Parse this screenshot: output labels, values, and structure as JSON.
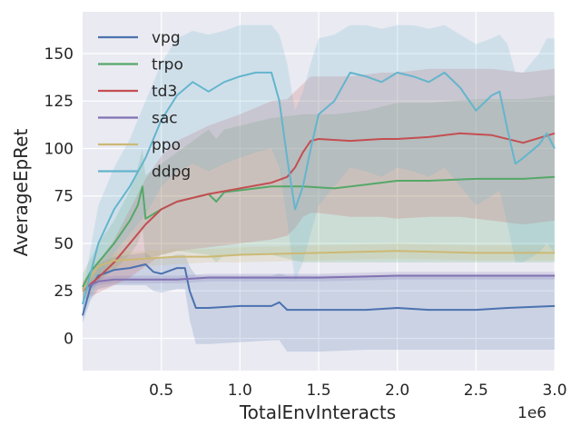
{
  "chart_data": {
    "type": "line",
    "xlabel": "TotalEnvInteracts",
    "ylabel": "AverageEpRet",
    "x_offset_label": "1e6",
    "xlim": [
      0,
      3.0
    ],
    "ylim": [
      -17,
      172
    ],
    "xticks": [
      0.5,
      1.0,
      1.5,
      2.0,
      2.5,
      3.0
    ],
    "xtick_labels": [
      "0.5",
      "1.0",
      "1.5",
      "2.0",
      "2.5",
      "3.0"
    ],
    "yticks": [
      0,
      25,
      50,
      75,
      100,
      125,
      150
    ],
    "ytick_labels": [
      "0",
      "25",
      "50",
      "75",
      "100",
      "125",
      "150"
    ],
    "grid": true,
    "legend_position": "top-left",
    "series": [
      {
        "name": "vpg",
        "color": "#4c72b0",
        "x": [
          0,
          0.05,
          0.1,
          0.2,
          0.3,
          0.4,
          0.45,
          0.5,
          0.6,
          0.65,
          0.68,
          0.72,
          0.8,
          1.0,
          1.2,
          1.25,
          1.3,
          1.5,
          1.8,
          2.0,
          2.2,
          2.5,
          2.7,
          3.0
        ],
        "y": [
          12,
          27,
          33,
          36,
          37,
          39,
          35,
          34,
          37,
          37,
          25,
          16,
          16,
          17,
          17,
          19,
          15,
          15,
          15,
          16,
          15,
          15,
          16,
          17
        ],
        "lower": [
          8,
          20,
          26,
          28,
          28,
          28,
          25,
          24,
          26,
          26,
          10,
          -3,
          -3,
          -2,
          -1,
          -1,
          -7,
          -7,
          -6,
          -6,
          -6,
          -6,
          -6,
          -6
        ],
        "upper": [
          16,
          33,
          39,
          43,
          44,
          45,
          42,
          42,
          44,
          44,
          38,
          33,
          33,
          33,
          33,
          34,
          33,
          33,
          33,
          33,
          33,
          33,
          33,
          33
        ]
      },
      {
        "name": "trpo",
        "color": "#55a868",
        "x": [
          0,
          0.05,
          0.1,
          0.2,
          0.3,
          0.35,
          0.38,
          0.4,
          0.5,
          0.6,
          0.8,
          0.85,
          0.9,
          1.0,
          1.2,
          1.4,
          1.6,
          1.8,
          2.0,
          2.2,
          2.5,
          2.8,
          3.0
        ],
        "y": [
          27,
          35,
          40,
          50,
          62,
          70,
          80,
          63,
          68,
          72,
          76,
          72,
          77,
          78,
          80,
          80,
          79,
          81,
          83,
          83,
          84,
          84,
          85
        ],
        "lower": [
          20,
          27,
          30,
          36,
          44,
          50,
          58,
          42,
          44,
          46,
          44,
          40,
          44,
          44,
          44,
          40,
          40,
          40,
          40,
          40,
          40,
          40,
          40
        ],
        "upper": [
          34,
          42,
          50,
          62,
          78,
          90,
          100,
          86,
          92,
          98,
          110,
          105,
          110,
          112,
          116,
          118,
          118,
          120,
          124,
          124,
          126,
          126,
          128
        ]
      },
      {
        "name": "td3",
        "color": "#c44e52",
        "x": [
          0,
          0.1,
          0.2,
          0.3,
          0.4,
          0.5,
          0.6,
          0.8,
          1.0,
          1.2,
          1.3,
          1.35,
          1.4,
          1.45,
          1.5,
          1.7,
          1.9,
          2.0,
          2.2,
          2.4,
          2.6,
          2.8,
          3.0
        ],
        "y": [
          25,
          32,
          40,
          50,
          60,
          68,
          72,
          76,
          79,
          82,
          85,
          90,
          98,
          104,
          105,
          104,
          105,
          105,
          106,
          108,
          107,
          103,
          108
        ],
        "lower": [
          20,
          24,
          28,
          32,
          38,
          44,
          46,
          48,
          50,
          52,
          54,
          58,
          64,
          66,
          66,
          64,
          64,
          63,
          64,
          64,
          62,
          60,
          62
        ],
        "upper": [
          30,
          40,
          52,
          68,
          84,
          96,
          104,
          112,
          118,
          125,
          126,
          130,
          134,
          138,
          138,
          138,
          140,
          140,
          142,
          142,
          142,
          140,
          142
        ]
      },
      {
        "name": "sac",
        "color": "#8172b2",
        "x": [
          0,
          0.05,
          0.1,
          0.2,
          0.4,
          0.6,
          0.8,
          1.0,
          1.5,
          2.0,
          2.5,
          3.0
        ],
        "y": [
          26,
          28,
          30,
          31,
          31,
          31,
          32,
          32,
          32,
          33,
          33,
          33
        ],
        "lower": [
          24,
          26,
          28,
          29,
          29,
          29,
          30,
          30,
          30,
          31,
          31,
          31
        ],
        "upper": [
          28,
          30,
          32,
          33,
          33,
          33,
          34,
          34,
          34,
          35,
          35,
          35
        ]
      },
      {
        "name": "ppo",
        "color": "#ccb974",
        "x": [
          0,
          0.05,
          0.1,
          0.2,
          0.4,
          0.6,
          0.8,
          1.0,
          1.5,
          2.0,
          2.5,
          3.0
        ],
        "y": [
          25,
          32,
          38,
          41,
          42,
          43,
          43,
          44,
          45,
          46,
          45,
          45
        ],
        "lower": [
          22,
          28,
          34,
          37,
          38,
          39,
          40,
          40,
          41,
          42,
          41,
          41
        ],
        "upper": [
          28,
          36,
          42,
          45,
          46,
          47,
          47,
          48,
          49,
          50,
          49,
          49
        ]
      },
      {
        "name": "ddpg",
        "color": "#64b5cd",
        "x": [
          0,
          0.1,
          0.2,
          0.3,
          0.4,
          0.5,
          0.6,
          0.7,
          0.8,
          0.9,
          1.0,
          1.1,
          1.2,
          1.25,
          1.3,
          1.35,
          1.4,
          1.45,
          1.5,
          1.6,
          1.7,
          1.8,
          1.9,
          2.0,
          2.1,
          2.2,
          2.3,
          2.4,
          2.5,
          2.6,
          2.65,
          2.7,
          2.75,
          2.8,
          2.9,
          2.95,
          3.0
        ],
        "y": [
          18,
          50,
          68,
          80,
          95,
          115,
          128,
          135,
          130,
          135,
          138,
          140,
          140,
          125,
          95,
          68,
          80,
          100,
          118,
          125,
          140,
          138,
          135,
          140,
          138,
          135,
          140,
          132,
          120,
          128,
          130,
          110,
          92,
          95,
          102,
          108,
          100
        ],
        "lower": [
          12,
          30,
          45,
          55,
          65,
          80,
          88,
          92,
          88,
          92,
          95,
          98,
          100,
          90,
          62,
          30,
          40,
          55,
          70,
          80,
          90,
          88,
          85,
          90,
          88,
          85,
          90,
          80,
          70,
          75,
          78,
          60,
          40,
          40,
          45,
          50,
          45
        ],
        "upper": [
          24,
          70,
          90,
          105,
          125,
          145,
          158,
          162,
          160,
          162,
          165,
          165,
          165,
          160,
          145,
          120,
          130,
          145,
          158,
          160,
          165,
          165,
          163,
          165,
          165,
          163,
          165,
          160,
          155,
          158,
          160,
          155,
          140,
          140,
          150,
          158,
          158
        ]
      }
    ]
  }
}
